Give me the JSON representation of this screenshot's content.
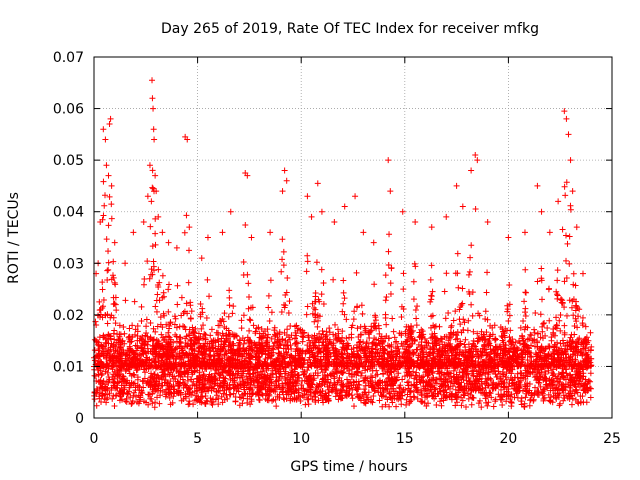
{
  "chart_data": {
    "type": "scatter",
    "title": "Day 265 of 2019, Rate Of TEC Index for receiver mfkg",
    "xlabel": "GPS time / hours",
    "ylabel": "ROTI / TECUs",
    "xlim": [
      0,
      25
    ],
    "ylim": [
      0,
      0.07
    ],
    "x_ticks": [
      0,
      5,
      10,
      15,
      20,
      25
    ],
    "x_tick_labels": [
      "0",
      "5",
      "10",
      "15",
      "20",
      "25"
    ],
    "y_ticks": [
      0,
      0.01,
      0.02,
      0.03,
      0.04,
      0.05,
      0.06,
      0.07
    ],
    "y_tick_labels": [
      "0",
      "0.01",
      "0.02",
      "0.03",
      "0.04",
      "0.05",
      "0.06",
      "0.07"
    ],
    "grid": true,
    "marker": "+",
    "series": [
      {
        "name": "ROTI",
        "color": "#ff0000",
        "x_range_hours": [
          0,
          24
        ],
        "typical_range": [
          0.004,
          0.015
        ],
        "points": [
          {
            "x": 0.1,
            "y": 0.028
          },
          {
            "x": 0.2,
            "y": 0.03
          },
          {
            "x": 0.3,
            "y": 0.038
          },
          {
            "x": 0.45,
            "y": 0.056
          },
          {
            "x": 0.55,
            "y": 0.054
          },
          {
            "x": 0.6,
            "y": 0.049
          },
          {
            "x": 0.7,
            "y": 0.047
          },
          {
            "x": 0.75,
            "y": 0.057
          },
          {
            "x": 0.8,
            "y": 0.058
          },
          {
            "x": 0.85,
            "y": 0.045
          },
          {
            "x": 1.0,
            "y": 0.034
          },
          {
            "x": 1.5,
            "y": 0.03
          },
          {
            "x": 1.9,
            "y": 0.036
          },
          {
            "x": 2.4,
            "y": 0.038
          },
          {
            "x": 2.6,
            "y": 0.043
          },
          {
            "x": 2.7,
            "y": 0.049
          },
          {
            "x": 2.8,
            "y": 0.0655
          },
          {
            "x": 2.82,
            "y": 0.062
          },
          {
            "x": 2.85,
            "y": 0.06
          },
          {
            "x": 2.88,
            "y": 0.056
          },
          {
            "x": 2.9,
            "y": 0.054
          },
          {
            "x": 2.95,
            "y": 0.047
          },
          {
            "x": 3.0,
            "y": 0.044
          },
          {
            "x": 3.1,
            "y": 0.039
          },
          {
            "x": 3.3,
            "y": 0.036
          },
          {
            "x": 3.6,
            "y": 0.034
          },
          {
            "x": 4.0,
            "y": 0.033
          },
          {
            "x": 4.4,
            "y": 0.0545
          },
          {
            "x": 4.5,
            "y": 0.054
          },
          {
            "x": 4.6,
            "y": 0.037
          },
          {
            "x": 5.2,
            "y": 0.031
          },
          {
            "x": 5.5,
            "y": 0.035
          },
          {
            "x": 6.2,
            "y": 0.036
          },
          {
            "x": 6.6,
            "y": 0.04
          },
          {
            "x": 7.3,
            "y": 0.0475
          },
          {
            "x": 7.4,
            "y": 0.047
          },
          {
            "x": 7.6,
            "y": 0.035
          },
          {
            "x": 8.5,
            "y": 0.036
          },
          {
            "x": 9.1,
            "y": 0.044
          },
          {
            "x": 9.2,
            "y": 0.048
          },
          {
            "x": 9.3,
            "y": 0.046
          },
          {
            "x": 10.3,
            "y": 0.043
          },
          {
            "x": 10.5,
            "y": 0.039
          },
          {
            "x": 10.8,
            "y": 0.0455
          },
          {
            "x": 11.0,
            "y": 0.04
          },
          {
            "x": 11.6,
            "y": 0.038
          },
          {
            "x": 12.1,
            "y": 0.041
          },
          {
            "x": 12.6,
            "y": 0.043
          },
          {
            "x": 13.0,
            "y": 0.036
          },
          {
            "x": 13.5,
            "y": 0.034
          },
          {
            "x": 14.2,
            "y": 0.05
          },
          {
            "x": 14.3,
            "y": 0.044
          },
          {
            "x": 14.9,
            "y": 0.04
          },
          {
            "x": 15.5,
            "y": 0.038
          },
          {
            "x": 16.3,
            "y": 0.037
          },
          {
            "x": 17.0,
            "y": 0.039
          },
          {
            "x": 17.5,
            "y": 0.045
          },
          {
            "x": 17.8,
            "y": 0.041
          },
          {
            "x": 18.2,
            "y": 0.048
          },
          {
            "x": 18.4,
            "y": 0.051
          },
          {
            "x": 18.5,
            "y": 0.05
          },
          {
            "x": 19.0,
            "y": 0.038
          },
          {
            "x": 20.0,
            "y": 0.035
          },
          {
            "x": 20.8,
            "y": 0.036
          },
          {
            "x": 21.4,
            "y": 0.045
          },
          {
            "x": 21.6,
            "y": 0.04
          },
          {
            "x": 22.0,
            "y": 0.036
          },
          {
            "x": 22.4,
            "y": 0.042
          },
          {
            "x": 22.7,
            "y": 0.0595
          },
          {
            "x": 22.8,
            "y": 0.058
          },
          {
            "x": 22.9,
            "y": 0.055
          },
          {
            "x": 23.0,
            "y": 0.05
          },
          {
            "x": 23.1,
            "y": 0.044
          },
          {
            "x": 23.3,
            "y": 0.037
          },
          {
            "x": 23.6,
            "y": 0.028
          }
        ]
      }
    ]
  }
}
